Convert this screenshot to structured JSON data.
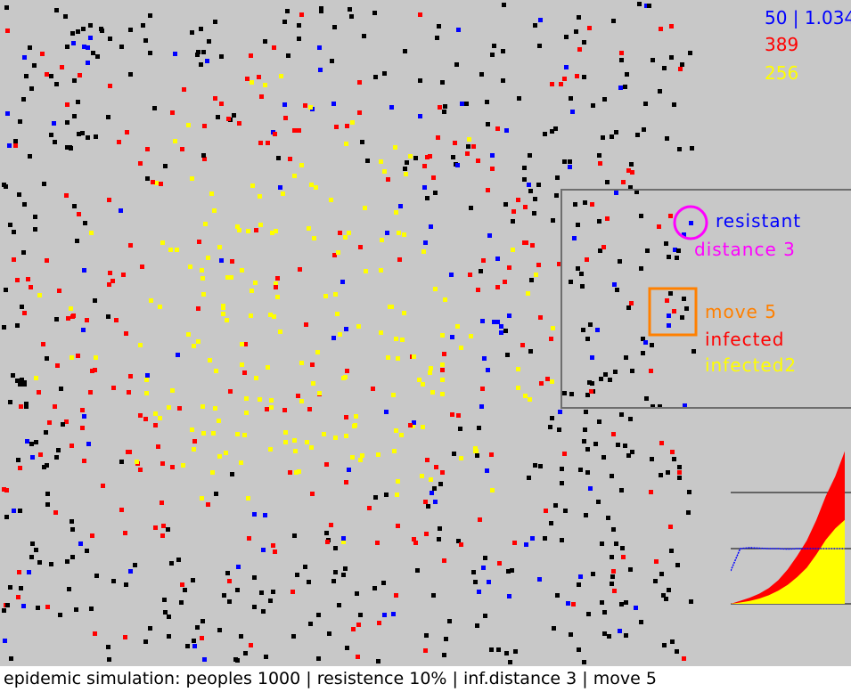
{
  "stats": {
    "resistant_readout": "50 | 1.034",
    "infected_count": "389",
    "infected2_count": "256"
  },
  "legend": {
    "resistant_label": "resistant",
    "distance_label": "distance 3",
    "move_label": "move 5",
    "infected_label": "infected",
    "infected2_label": "infected2"
  },
  "status_bar": {
    "text": "epidemic simulation: peoples 1000 | resistence 10% | inf.distance 3 | move 5"
  },
  "colors": {
    "background": "#c8c8c8",
    "healthy": "#000000",
    "resistant": "#0000ff",
    "infected": "#ff0000",
    "infected2": "#ffff00",
    "distance_marker": "#ff00ff",
    "move_marker": "#ff8000"
  },
  "simulation": {
    "peoples": 1000,
    "resistance_percent": 10,
    "infection_distance": 3,
    "move": 5
  },
  "chart_data": {
    "type": "area",
    "series": [
      {
        "name": "infected",
        "color": "#ff0000",
        "values": [
          0,
          8,
          16,
          26,
          40,
          60,
          88,
          122,
          160,
          210,
          270,
          320,
          389
        ]
      },
      {
        "name": "infected2",
        "color": "#ffff00",
        "values": [
          0,
          4,
          9,
          16,
          26,
          40,
          58,
          82,
          110,
          150,
          195,
          230,
          256
        ]
      },
      {
        "name": "resistant",
        "color": "#0000ff",
        "values": [
          0,
          50,
          52,
          51,
          50,
          50,
          49,
          50,
          50,
          50,
          50,
          50,
          50
        ]
      }
    ],
    "ylim": [
      0,
      1000
    ]
  }
}
